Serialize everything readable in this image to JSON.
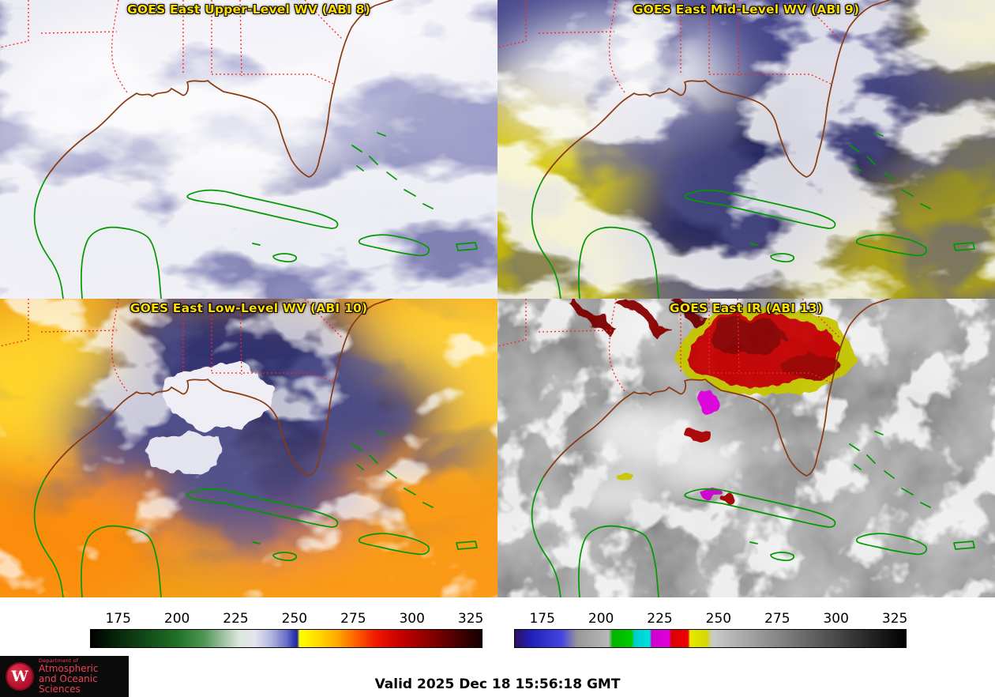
{
  "panels": [
    {
      "title": "GOES East Upper-Level WV (ABI 8)"
    },
    {
      "title": "GOES East Mid-Level WV (ABI 9)"
    },
    {
      "title": "GOES East Low-Level WV (ABI 10)"
    },
    {
      "title": "GOES East IR (ABI 13)"
    }
  ],
  "colorbars": [
    {
      "name": "water-vapor-brightness-temperature-scale",
      "range": [
        163,
        330
      ],
      "ticks": [
        175,
        200,
        225,
        250,
        275,
        300,
        325
      ],
      "stops": [
        [
          0,
          "#000000"
        ],
        [
          6,
          "#06220a"
        ],
        [
          14,
          "#124a18"
        ],
        [
          22,
          "#1f7026"
        ],
        [
          29,
          "#4f9654"
        ],
        [
          34,
          "#9fc2a2"
        ],
        [
          38,
          "#dce6dc"
        ],
        [
          42,
          "#e4e4f0"
        ],
        [
          46,
          "#b4b8e0"
        ],
        [
          50,
          "#6a70c8"
        ],
        [
          52,
          "#3038b0"
        ],
        [
          52.8,
          "#2028a0"
        ],
        [
          53.4,
          "#ffff00"
        ],
        [
          58,
          "#ffdc00"
        ],
        [
          63,
          "#ffa800"
        ],
        [
          68,
          "#ff5c00"
        ],
        [
          73,
          "#f01800"
        ],
        [
          79,
          "#c80000"
        ],
        [
          86,
          "#900000"
        ],
        [
          93,
          "#500000"
        ],
        [
          100,
          "#140000"
        ]
      ]
    },
    {
      "name": "infrared-brightness-temperature-scale",
      "range": [
        163,
        330
      ],
      "ticks": [
        175,
        200,
        225,
        250,
        275,
        300,
        325
      ],
      "stops": [
        [
          0,
          "#2e1060"
        ],
        [
          4,
          "#2020b8"
        ],
        [
          12,
          "#4444e0"
        ],
        [
          16,
          "#989898"
        ],
        [
          24,
          "#b8b8b8"
        ],
        [
          25,
          "#00b400"
        ],
        [
          30,
          "#00cc00"
        ],
        [
          30.5,
          "#00cccc"
        ],
        [
          34.5,
          "#00e0e0"
        ],
        [
          35,
          "#cc00cc"
        ],
        [
          39.5,
          "#e000e0"
        ],
        [
          40,
          "#dc0000"
        ],
        [
          44.3,
          "#ee0000"
        ],
        [
          44.8,
          "#e8e800"
        ],
        [
          49,
          "#d8d800"
        ],
        [
          50.5,
          "#cacaca"
        ],
        [
          100,
          "#000000"
        ]
      ]
    }
  ],
  "footer": {
    "valid_label": "Valid 2025 Dec 18 15:56:18 GMT",
    "logo": {
      "letter": "W",
      "dept": "Department of",
      "line1": "Atmospheric",
      "line2": "and Oceanic Sciences"
    }
  },
  "colors": {
    "panel_title": "#ffdf00",
    "state_border": "#ff2222",
    "us_coastline": "#8a3a10",
    "island_coastline": "#009a00"
  }
}
